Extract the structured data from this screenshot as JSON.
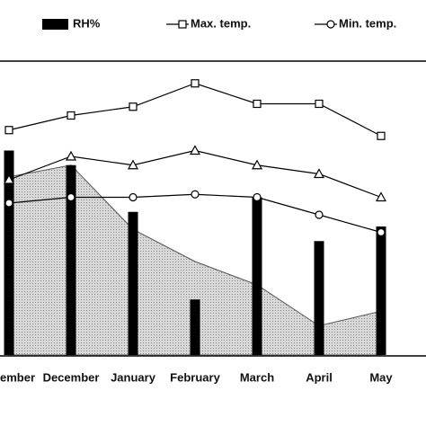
{
  "chart_data": {
    "type": "combo",
    "categories": [
      "ember",
      "December",
      "January",
      "February",
      "March",
      "April",
      "May"
    ],
    "ylim": [
      0,
      100
    ],
    "series": [
      {
        "type": "area",
        "color": "#c4c4c4",
        "values": [
          61,
          65,
          43,
          32,
          24,
          10,
          15
        ]
      },
      {
        "type": "bar",
        "name": "RH%",
        "color": "#000000",
        "values": [
          70,
          65,
          49,
          19,
          54,
          39,
          44
        ]
      },
      {
        "type": "line",
        "name": "Max. temp.",
        "marker": "square",
        "color": "#000000",
        "values": [
          77,
          82,
          85,
          93,
          86,
          86,
          75
        ]
      },
      {
        "type": "line",
        "marker": "triangle",
        "color": "#000000",
        "values": [
          60,
          68,
          65,
          70,
          65,
          62,
          54
        ]
      },
      {
        "type": "line",
        "name": "Min. temp.",
        "marker": "circle",
        "color": "#000000",
        "values": [
          52,
          54,
          54,
          55,
          54,
          48,
          42
        ]
      }
    ]
  }
}
